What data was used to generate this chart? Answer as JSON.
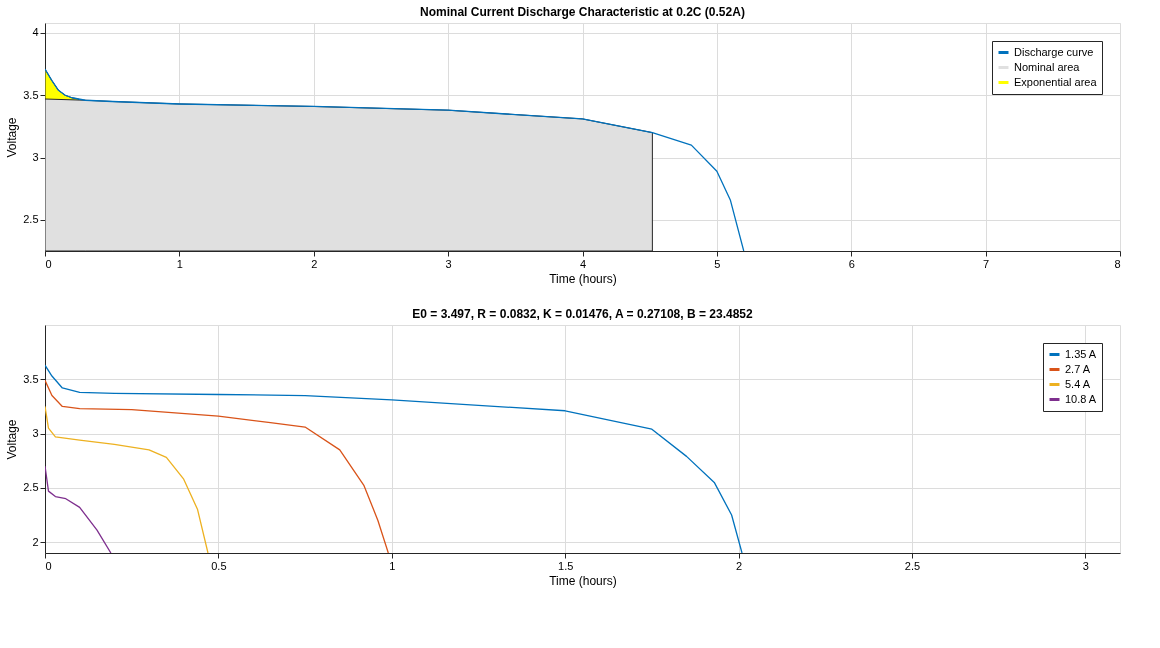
{
  "chart_data": [
    {
      "type": "line",
      "title": "Nominal Current Discharge Characteristic at 0.2C (0.52A)",
      "xlabel": "Time (hours)",
      "ylabel": "Voltage",
      "xlim": [
        0,
        8
      ],
      "ylim": [
        2.25,
        4.08
      ],
      "xticks": [
        0,
        1,
        2,
        3,
        4,
        5,
        6,
        7,
        8
      ],
      "yticks": [
        2.5,
        3,
        3.5,
        4
      ],
      "grid": true,
      "legend": "top right",
      "marker": "none",
      "line_style": "solid",
      "series": [
        {
          "name": "Discharge curve",
          "color": "#0072bd",
          "x": [
            0,
            0.05,
            0.1,
            0.15,
            0.2,
            0.3,
            0.5,
            1,
            2,
            3,
            4,
            4.52,
            4.81,
            5,
            5.1,
            5.2
          ],
          "values": [
            3.71,
            3.62,
            3.54,
            3.5,
            3.48,
            3.46,
            3.45,
            3.43,
            3.41,
            3.38,
            3.31,
            3.2,
            3.1,
            2.89,
            2.66,
            2.25
          ]
        },
        {
          "name": "Nominal area",
          "type": "area",
          "color": "#e0e0e0",
          "x": [
            0,
            0.3,
            0.5,
            1,
            2,
            3,
            4,
            4.52
          ],
          "values": [
            3.47,
            3.46,
            3.45,
            3.43,
            3.41,
            3.38,
            3.31,
            3.2
          ]
        },
        {
          "name": "Exponential area",
          "type": "area",
          "color": "#ffff00",
          "x": [
            0,
            0.05,
            0.1,
            0.15,
            0.2,
            0.25
          ],
          "values": [
            3.71,
            3.62,
            3.54,
            3.5,
            3.48,
            3.47
          ]
        }
      ]
    },
    {
      "type": "line",
      "title": "E0 = 3.497, R = 0.0832, K = 0.01476, A = 0.27108, B = 23.4852",
      "xlabel": "Time (hours)",
      "ylabel": "Voltage",
      "xlim": [
        0,
        3.1
      ],
      "ylim": [
        1.9,
        4.0
      ],
      "xticks": [
        0,
        0.5,
        1,
        1.5,
        2,
        2.5,
        3
      ],
      "yticks": [
        2,
        2.5,
        3,
        3.5
      ],
      "grid": true,
      "legend": "top right",
      "marker": "none",
      "line_style": "solid",
      "series": [
        {
          "name": "1.35 A",
          "color": "#0072bd",
          "x": [
            0,
            0.02,
            0.05,
            0.1,
            0.2,
            0.5,
            0.75,
            1,
            1.5,
            1.75,
            1.85,
            1.93,
            1.98,
            2.01
          ],
          "values": [
            3.63,
            3.53,
            3.42,
            3.38,
            3.37,
            3.36,
            3.35,
            3.31,
            3.21,
            3.04,
            2.79,
            2.55,
            2.25,
            1.9
          ]
        },
        {
          "name": "2.7 A",
          "color": "#d95319",
          "x": [
            0,
            0.02,
            0.05,
            0.1,
            0.25,
            0.5,
            0.65,
            0.75,
            0.85,
            0.92,
            0.96,
            0.99
          ],
          "values": [
            3.49,
            3.35,
            3.25,
            3.23,
            3.22,
            3.16,
            3.1,
            3.06,
            2.85,
            2.52,
            2.2,
            1.9
          ]
        },
        {
          "name": "5.4 A",
          "color": "#edb120",
          "x": [
            0,
            0.01,
            0.03,
            0.1,
            0.2,
            0.3,
            0.35,
            0.4,
            0.44,
            0.47
          ],
          "values": [
            3.25,
            3.05,
            2.97,
            2.94,
            2.9,
            2.85,
            2.78,
            2.58,
            2.3,
            1.9
          ]
        },
        {
          "name": "10.8 A",
          "color": "#7e2f8e",
          "x": [
            0,
            0.01,
            0.03,
            0.06,
            0.1,
            0.15,
            0.19
          ],
          "values": [
            2.7,
            2.47,
            2.42,
            2.4,
            2.32,
            2.11,
            1.9
          ]
        }
      ]
    }
  ]
}
